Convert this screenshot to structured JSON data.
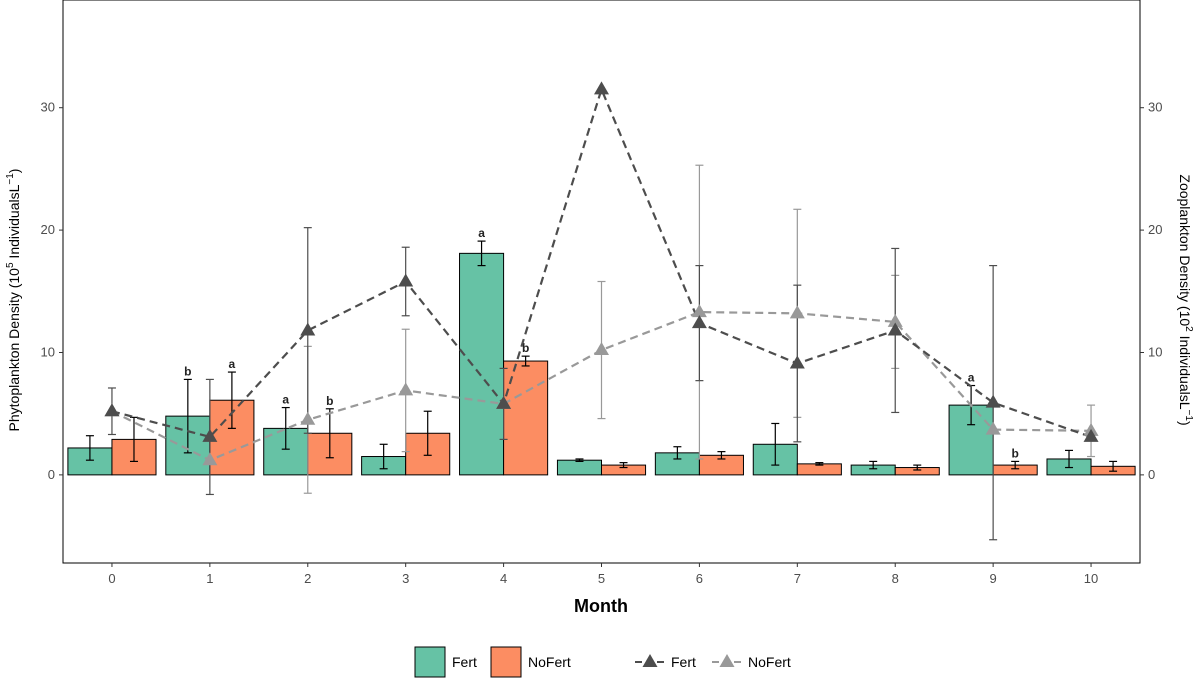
{
  "chart_data": {
    "type": "bar",
    "xlabel": "Month",
    "ylabel_left": "Phytoplankton Density (10",
    "ylabel_left_sup": "5",
    "ylabel_left_unit": " IndividualsL",
    "ylabel_left_unit_sup": "−1",
    "ylabel_left_close": ")",
    "ylabel_right": "Zooplankton Density (10",
    "ylabel_right_sup": "2",
    "ylabel_right_unit": " IndividualsL",
    "ylabel_right_unit_sup": "−1",
    "ylabel_right_close": ")",
    "ylim": [
      -7.2,
      38.8
    ],
    "yticks": [
      0,
      10,
      20,
      30
    ],
    "categories": [
      "0",
      "1",
      "2",
      "3",
      "4",
      "5",
      "6",
      "7",
      "8",
      "9",
      "10"
    ],
    "bar_series": [
      {
        "name": "Fert",
        "color": "#66c2a5",
        "values": [
          2.2,
          4.8,
          3.8,
          1.5,
          18.1,
          1.2,
          1.8,
          2.5,
          0.8,
          5.7,
          1.3
        ],
        "err": [
          1.0,
          3.0,
          1.7,
          1.0,
          1.0,
          0.1,
          0.5,
          1.7,
          0.3,
          1.6,
          0.7
        ],
        "sig": [
          "",
          "b",
          "a",
          "",
          "a",
          "",
          "",
          "",
          "",
          "a",
          ""
        ]
      },
      {
        "name": "NoFert",
        "color": "#fc8d62",
        "values": [
          2.9,
          6.1,
          3.4,
          3.4,
          9.3,
          0.8,
          1.6,
          0.9,
          0.6,
          0.8,
          0.7
        ],
        "err": [
          1.8,
          2.3,
          2.0,
          1.8,
          0.4,
          0.2,
          0.3,
          0.1,
          0.2,
          0.3,
          0.4
        ],
        "sig": [
          "",
          "a",
          "b",
          "",
          "b",
          "",
          "",
          "",
          "",
          "b",
          ""
        ]
      }
    ],
    "line_series": [
      {
        "name": "Fert",
        "color": "#4d4d4d",
        "values": [
          5.2,
          3.1,
          11.8,
          15.8,
          5.8,
          31.5,
          12.4,
          9.1,
          11.8,
          5.9,
          3.1
        ],
        "err": [
          1.9,
          4.7,
          8.4,
          2.8,
          2.9,
          0,
          4.7,
          6.4,
          6.7,
          11.2,
          0
        ]
      },
      {
        "name": "NoFert",
        "color": "#999999",
        "values": [
          5.2,
          1.2,
          4.5,
          6.9,
          5.8,
          10.2,
          13.3,
          13.2,
          12.5,
          3.7,
          3.6
        ],
        "err": [
          0,
          0,
          6.0,
          5.0,
          0,
          5.6,
          12.0,
          8.5,
          3.8,
          0,
          2.1
        ]
      }
    ],
    "legend": {
      "position": "bottom",
      "bar_labels": [
        "Fert",
        "NoFert"
      ],
      "line_labels": [
        "Fert",
        "NoFert"
      ]
    }
  }
}
